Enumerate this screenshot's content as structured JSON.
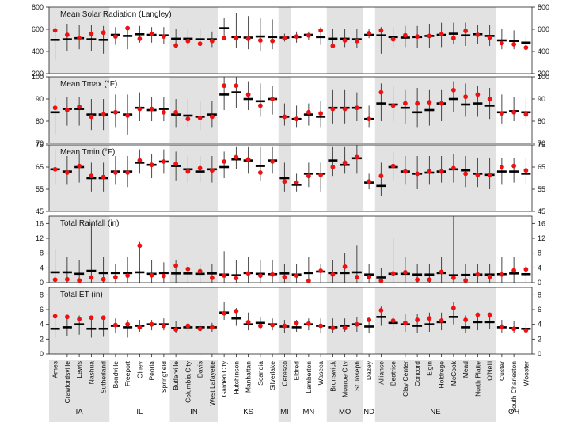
{
  "chart_data": {
    "type": "multi-panel point-range",
    "description_note": "Five stacked panels; each site shows a vertical range line, a black horizontal bar (median) and a red dot (observed).",
    "sites": [
      "Ames",
      "Crawfordsville",
      "Lewis",
      "Nashua",
      "Sutherland",
      "Bondville",
      "Freeport",
      "Olney",
      "Peoria",
      "Springfield",
      "Butlerville",
      "Columbia City",
      "Davis",
      "West Lafayette",
      "Garden City",
      "Hutchinson",
      "Manhattan",
      "Scandia",
      "Silverlake",
      "Ceresco",
      "Eldred",
      "Lamberton",
      "Waseca",
      "Brunswick",
      "Monroe City",
      "St Joseph",
      "Dazey",
      "Alliance",
      "Beatrice",
      "Clay Center",
      "Concord",
      "Elgin",
      "Holdrege",
      "McCook",
      "Mead",
      "North Platte",
      "O'Neill",
      "Custar",
      "South Charleston",
      "Wooster"
    ],
    "states": [
      {
        "name": "IA",
        "start": 0,
        "end": 4,
        "shaded": true
      },
      {
        "name": "IL",
        "start": 5,
        "end": 9,
        "shaded": false
      },
      {
        "name": "IN",
        "start": 10,
        "end": 13,
        "shaded": true
      },
      {
        "name": "KS",
        "start": 14,
        "end": 18,
        "shaded": false
      },
      {
        "name": "MI",
        "start": 19,
        "end": 19,
        "shaded": true
      },
      {
        "name": "MN",
        "start": 20,
        "end": 22,
        "shaded": false
      },
      {
        "name": "MO",
        "start": 23,
        "end": 25,
        "shaded": true
      },
      {
        "name": "ND",
        "start": 26,
        "end": 26,
        "shaded": false
      },
      {
        "name": "NE",
        "start": 27,
        "end": 36,
        "shaded": true
      },
      {
        "name": "OH",
        "start": 37,
        "end": 39,
        "shaded": false
      }
    ],
    "panels": [
      {
        "title": "Mean Solar Radiation (Langley)",
        "ylim": [
          200,
          800
        ],
        "yticks": [
          200,
          400,
          600,
          800
        ],
        "tick_labels": [
          "200",
          "400",
          "600",
          "800"
        ],
        "low": [
          320,
          400,
          420,
          400,
          380,
          460,
          420,
          480,
          480,
          470,
          430,
          430,
          440,
          440,
          520,
          430,
          420,
          400,
          420,
          490,
          480,
          500,
          460,
          440,
          440,
          430,
          520,
          380,
          440,
          440,
          430,
          430,
          440,
          470,
          450,
          470,
          450,
          420,
          420,
          400
        ],
        "high": [
          650,
          650,
          640,
          640,
          630,
          620,
          630,
          630,
          620,
          620,
          600,
          600,
          600,
          580,
          700,
          750,
          720,
          700,
          690,
          560,
          580,
          580,
          620,
          600,
          600,
          600,
          600,
          620,
          620,
          630,
          630,
          650,
          660,
          660,
          660,
          640,
          640,
          600,
          590,
          540
        ],
        "median": [
          505,
          510,
          520,
          510,
          505,
          550,
          540,
          555,
          550,
          545,
          515,
          515,
          510,
          510,
          610,
          530,
          525,
          535,
          530,
          525,
          530,
          550,
          530,
          515,
          515,
          510,
          550,
          545,
          530,
          525,
          530,
          540,
          550,
          560,
          545,
          555,
          540,
          500,
          495,
          480
        ],
        "observed": [
          590,
          550,
          520,
          560,
          570,
          535,
          610,
          515,
          560,
          535,
          455,
          495,
          470,
          495,
          520,
          520,
          515,
          500,
          495,
          520,
          535,
          545,
          590,
          450,
          500,
          495,
          565,
          590,
          510,
          545,
          535,
          540,
          555,
          520,
          585,
          550,
          525,
          475,
          465,
          435
        ]
      },
      {
        "title": "Mean Tmax (°F)",
        "ylim": [
          70,
          100
        ],
        "yticks": [
          70,
          80,
          90,
          100
        ],
        "tick_labels": [
          "70",
          "80",
          "90",
          "100"
        ],
        "low": [
          74,
          78,
          78,
          76,
          76,
          77,
          74,
          80,
          80,
          80,
          77,
          77,
          76,
          77,
          85,
          86,
          85,
          82,
          83,
          78,
          77,
          78,
          77,
          79,
          79,
          80,
          77,
          80,
          80,
          79,
          77,
          78,
          80,
          84,
          82,
          82,
          81,
          79,
          80,
          79
        ],
        "high": [
          91,
          91,
          91,
          90,
          90,
          92,
          92,
          93,
          91,
          91,
          90,
          90,
          89,
          89,
          100,
          103,
          98,
          97,
          96,
          88,
          87,
          88,
          89,
          94,
          94,
          93,
          87,
          97,
          96,
          94,
          95,
          94,
          94,
          98,
          97,
          96,
          95,
          92,
          91,
          90
        ],
        "median": [
          84,
          85.5,
          85.5,
          83,
          83,
          84,
          83,
          86,
          85,
          85.5,
          83,
          82.5,
          82,
          83,
          92,
          93,
          90,
          89,
          90,
          82,
          81,
          83,
          82,
          86,
          86,
          86,
          81,
          88,
          87.5,
          86,
          84,
          85,
          88,
          90,
          87.5,
          88,
          87,
          84,
          84.5,
          84
        ],
        "observed": [
          86,
          85,
          86.5,
          82,
          83,
          84,
          82.5,
          85.5,
          85.5,
          84,
          84,
          81,
          81.5,
          82,
          96,
          96,
          92,
          87,
          90,
          82,
          81,
          84,
          83.5,
          85.5,
          85.5,
          86,
          81,
          93,
          87,
          88,
          88,
          88.5,
          88,
          94,
          91,
          92,
          90,
          83.5,
          84,
          83
        ]
      },
      {
        "title": "Mean Tmin (°F)",
        "ylim": [
          45,
          75
        ],
        "yticks": [
          45,
          55,
          65,
          75
        ],
        "tick_labels": [
          "45",
          "55",
          "65",
          "75"
        ],
        "low": [
          57,
          57,
          58,
          54,
          54,
          57,
          56,
          62,
          60,
          62,
          59,
          58,
          58,
          58,
          60,
          64,
          62,
          59,
          62,
          54,
          54,
          56,
          54,
          61,
          62,
          62,
          55,
          52,
          59,
          57,
          55,
          57,
          58,
          58,
          56,
          56,
          55,
          57,
          58,
          57
        ],
        "high": [
          73,
          70,
          71,
          67,
          67,
          70,
          70,
          73,
          71,
          73,
          72,
          70,
          70,
          70,
          72,
          74,
          74,
          74,
          74,
          67,
          62,
          67,
          67,
          74,
          74,
          75,
          62,
          67,
          72,
          70,
          70,
          70,
          70,
          71,
          70,
          69,
          69,
          69,
          69,
          69
        ],
        "median": [
          64,
          63,
          65,
          60,
          60,
          63,
          63,
          67,
          66,
          67.5,
          65.5,
          64,
          63,
          64,
          65,
          68.5,
          68,
          65.5,
          68,
          60,
          57,
          62,
          62,
          68,
          66,
          69,
          58,
          56.5,
          65,
          63,
          62,
          62.5,
          63,
          64,
          63.5,
          62,
          61.5,
          63,
          63,
          62
        ],
        "observed": [
          64,
          62.5,
          65.5,
          61,
          60.5,
          62.5,
          62.5,
          68,
          66,
          67.5,
          66.5,
          63,
          64.5,
          63.5,
          67.5,
          69.5,
          68.5,
          62.5,
          67.5,
          58.5,
          58,
          61,
          61.5,
          65,
          67,
          69.5,
          58.5,
          61,
          65.5,
          63,
          62,
          63,
          63,
          64.5,
          62,
          61.5,
          61.5,
          65,
          65.5,
          63.5
        ]
      },
      {
        "title": "Total Rainfall (in)",
        "ylim": [
          0,
          18
        ],
        "yticks": [
          0,
          4,
          8,
          12,
          16
        ],
        "tick_labels": [
          "0",
          "4",
          "8",
          "12",
          "16"
        ],
        "low": [
          0,
          0,
          0,
          0,
          0,
          0,
          0,
          0,
          0,
          0,
          0,
          0,
          0,
          0,
          0,
          0,
          0,
          0,
          0,
          0,
          0,
          0,
          0,
          0,
          0,
          0,
          0,
          0,
          0,
          0,
          0,
          0,
          0,
          0,
          0,
          0,
          0,
          0,
          0,
          0
        ],
        "high": [
          9,
          7,
          6,
          16,
          7,
          5,
          7,
          11,
          6,
          5.5,
          6,
          5,
          5,
          5,
          8.5,
          6,
          7,
          6,
          6,
          5,
          5,
          7,
          5,
          6,
          8,
          10,
          5,
          4,
          12,
          7,
          5,
          5,
          7,
          19,
          5,
          5,
          5,
          7,
          7,
          5
        ],
        "median": [
          2.8,
          2.8,
          2.4,
          3.2,
          2.6,
          2.6,
          2.6,
          2.8,
          2.4,
          2.6,
          2.5,
          2.5,
          2.4,
          2.5,
          2.2,
          2.0,
          2.6,
          2.4,
          2.3,
          2.5,
          2.2,
          2.6,
          3.0,
          2.6,
          2.6,
          2.8,
          2.2,
          1.4,
          2.4,
          2.4,
          2.2,
          2.2,
          2.6,
          2.0,
          2.1,
          2.2,
          2.2,
          2.3,
          2.5,
          2.3
        ],
        "observed": [
          0.8,
          0.9,
          0.6,
          1.4,
          0.9,
          1.5,
          1.9,
          10,
          2,
          1.8,
          4.6,
          3.7,
          3.1,
          1.3,
          1.9,
          1.2,
          2.5,
          1.9,
          2.2,
          1.5,
          1.9,
          0.5,
          3.2,
          2.2,
          4.3,
          1.5,
          1.5,
          0.5,
          2.5,
          2.8,
          0.8,
          0.8,
          2.9,
          1.3,
          0.6,
          2.2,
          1.6,
          2.2,
          3.3,
          3.6
        ]
      },
      {
        "title": "Total ET (in)",
        "ylim": [
          0,
          9
        ],
        "yticks": [
          0,
          2,
          4,
          6,
          8
        ],
        "tick_labels": [
          "0",
          "2",
          "4",
          "6",
          "8"
        ],
        "low": [
          2.2,
          2.4,
          2.6,
          2.2,
          2.3,
          2.8,
          2.2,
          3.0,
          3.2,
          3.2,
          2.8,
          3.0,
          3.0,
          3.0,
          4.6,
          3.8,
          3.2,
          3.4,
          3.2,
          2.8,
          3.0,
          3.2,
          2.8,
          2.8,
          3.0,
          3.0,
          2.8,
          3.8,
          3.2,
          3.0,
          2.8,
          3.0,
          3.2,
          4.0,
          2.8,
          3.2,
          3.4,
          2.8,
          2.8,
          2.8
        ],
        "high": [
          4.8,
          5.0,
          5.2,
          5.0,
          4.8,
          4.8,
          4.6,
          4.6,
          4.6,
          4.8,
          4.4,
          4.2,
          4.2,
          4.2,
          7.0,
          6.2,
          5.6,
          5.0,
          4.8,
          4.6,
          4.6,
          4.8,
          4.8,
          4.8,
          4.8,
          5.0,
          4.8,
          6.4,
          5.2,
          5.4,
          5.4,
          5.6,
          5.6,
          7.0,
          5.2,
          5.6,
          5.6,
          4.6,
          4.4,
          4.2
        ],
        "median": [
          3.4,
          3.6,
          4.0,
          3.4,
          3.4,
          3.8,
          3.6,
          3.8,
          4.0,
          4.0,
          3.5,
          3.6,
          3.6,
          3.6,
          5.6,
          4.8,
          4.0,
          4.2,
          4.0,
          3.7,
          3.6,
          4.0,
          3.8,
          3.6,
          3.8,
          4.0,
          3.7,
          5.0,
          4.2,
          4.0,
          3.8,
          4.0,
          4.3,
          5.0,
          3.6,
          4.3,
          4.3,
          3.6,
          3.5,
          3.4
        ],
        "observed": [
          5.1,
          5.0,
          4.7,
          4.9,
          4.9,
          3.9,
          4.0,
          3.6,
          4.0,
          3.8,
          3.3,
          3.8,
          3.4,
          3.6,
          5.5,
          5.8,
          4.3,
          3.8,
          3.9,
          3.8,
          4.2,
          4.1,
          3.8,
          3.5,
          3.5,
          4.0,
          4.6,
          5.9,
          4.5,
          4.2,
          4.6,
          4.8,
          4.5,
          6.2,
          4.6,
          5.3,
          5.3,
          3.7,
          3.4,
          3.2
        ]
      }
    ]
  }
}
